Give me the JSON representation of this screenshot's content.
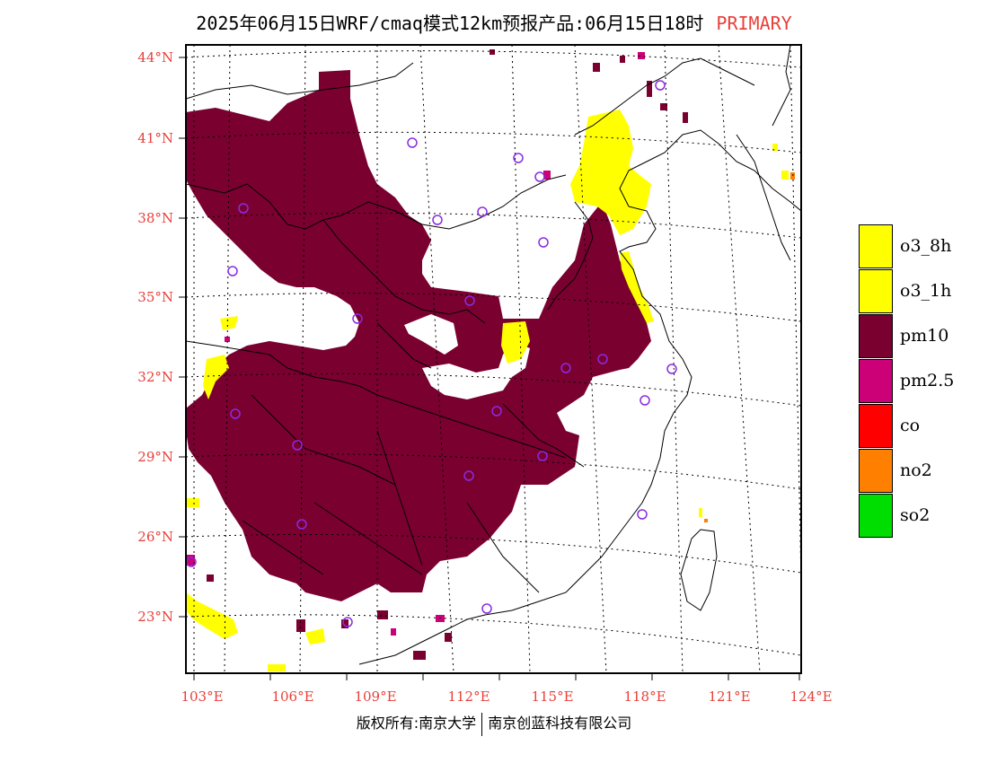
{
  "title": {
    "main": "2025年06月15日WRF/cmaq模式12km预报产品:06月15日18时",
    "tag": "PRIMARY"
  },
  "lat_labels": [
    "44°N",
    "41°N",
    "38°N",
    "35°N",
    "32°N",
    "29°N",
    "26°N",
    "23°N"
  ],
  "lon_labels": [
    "103°E",
    "106°E",
    "109°E",
    "112°E",
    "115°E",
    "118°E",
    "121°E",
    "124°E"
  ],
  "legend": [
    {
      "label": "o3_8h",
      "color": "#ffff00"
    },
    {
      "label": "o3_1h",
      "color": "#ffff00"
    },
    {
      "label": "pm10",
      "color": "#7a0030"
    },
    {
      "label": "pm2.5",
      "color": "#cc0077"
    },
    {
      "label": "co",
      "color": "#ff0000"
    },
    {
      "label": "no2",
      "color": "#ff8000"
    },
    {
      "label": "so2",
      "color": "#00dd00"
    }
  ],
  "footer": {
    "left": "版权所有:南京大学",
    "right": "南京创蓝科技有限公司"
  },
  "colors": {
    "axis_label": "#e8403a",
    "pm10": "#7a0030",
    "ozone": "#ffff00",
    "station_marker": "#8a2be2"
  },
  "icons": {
    "station": "circle-marker-icon"
  }
}
